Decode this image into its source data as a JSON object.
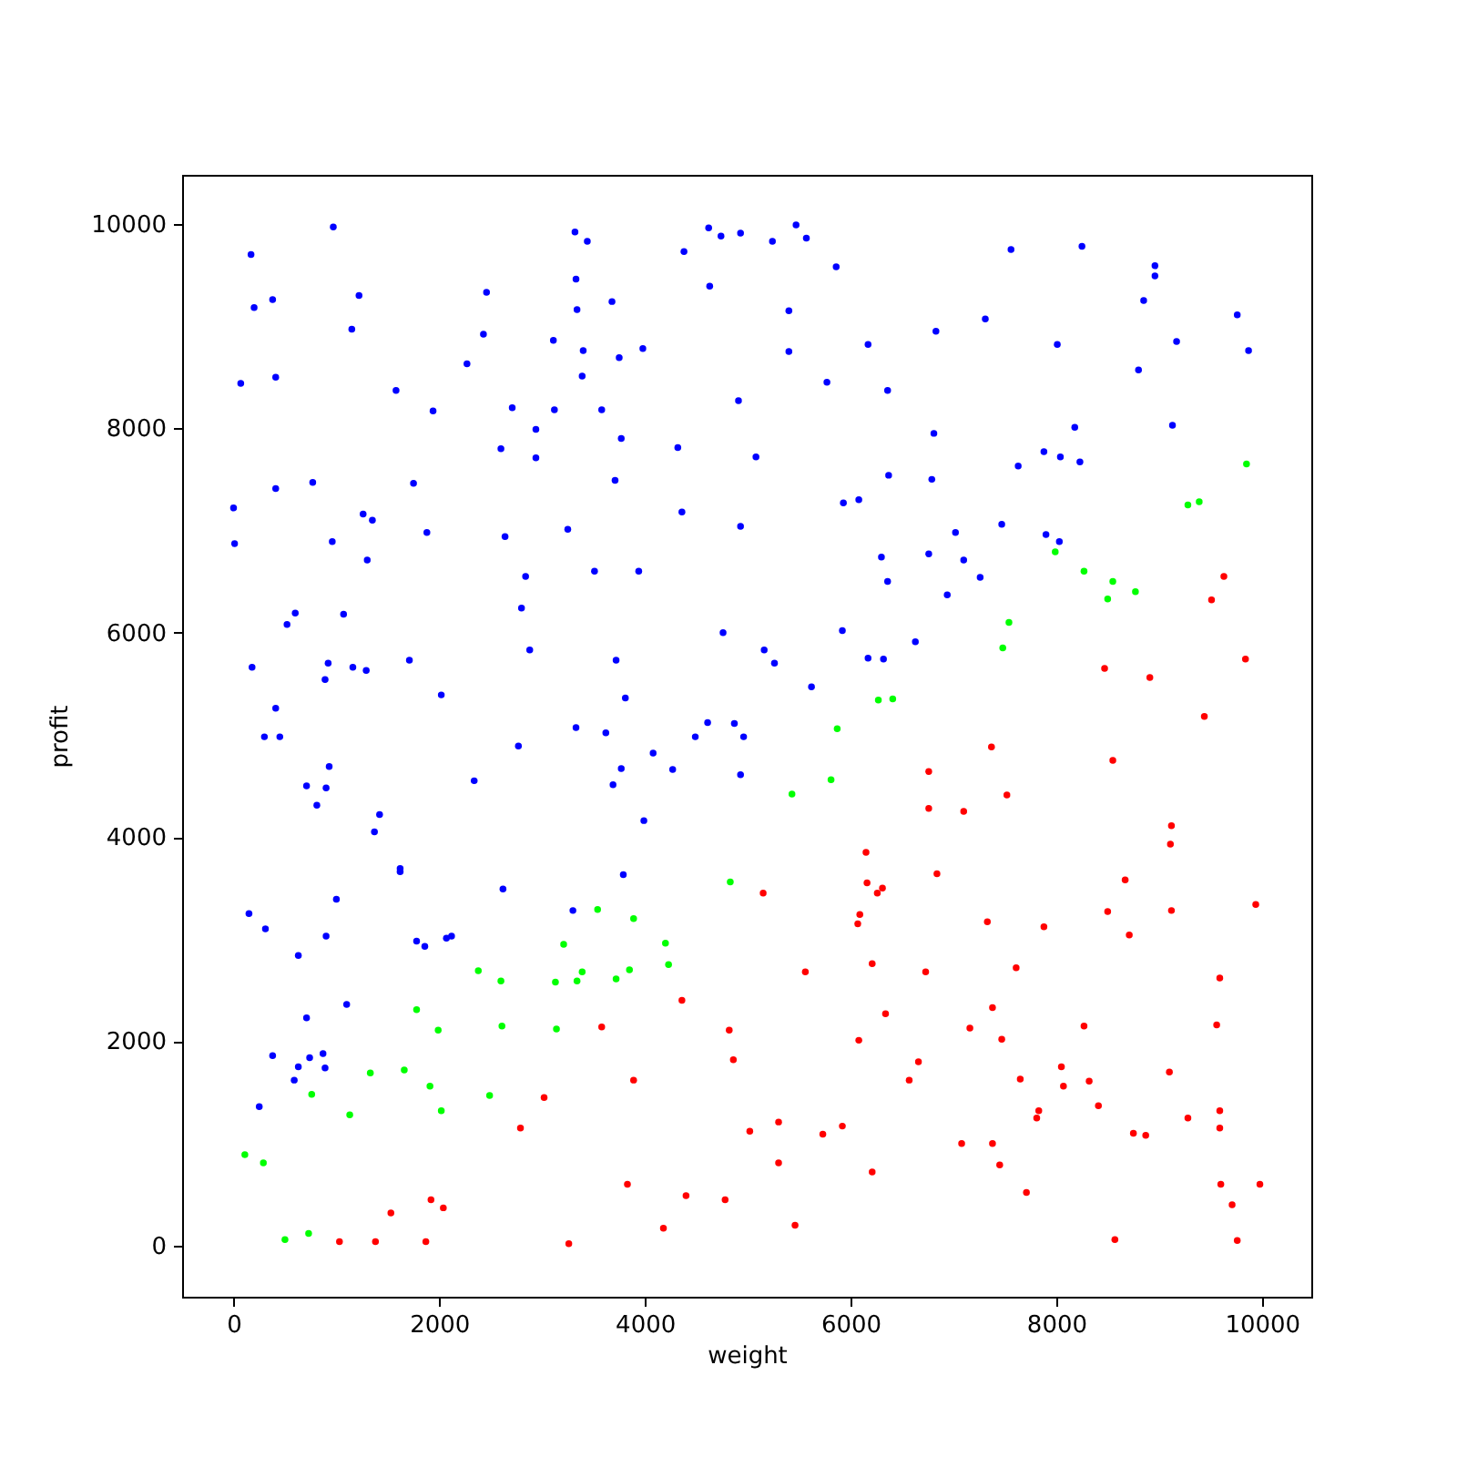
{
  "chart_data": {
    "type": "scatter",
    "xlabel": "weight",
    "ylabel": "profit",
    "xlim": [
      -500,
      10480
    ],
    "ylim": [
      -500,
      10480
    ],
    "xticks": [
      0,
      2000,
      4000,
      6000,
      8000,
      10000
    ],
    "yticks": [
      0,
      2000,
      4000,
      6000,
      8000,
      10000
    ],
    "grid": false,
    "marker": "circle",
    "series": [
      {
        "color": "#0000ff",
        "x": [
          970,
          170,
          380,
          200,
          1220,
          2460,
          1150,
          2430,
          3110,
          2270,
          70,
          410,
          1580,
          1940,
          2710,
          3120,
          2940,
          2600,
          2940,
          410,
          770,
          1750,
          0,
          1260,
          1350,
          1880,
          2640,
          10,
          960,
          1300,
          2840,
          2800,
          600,
          520,
          1070,
          2880,
          180,
          920,
          890,
          1160,
          1290,
          1710,
          2020,
          410,
          300,
          450,
          2770,
          930,
          2340,
          710,
          900,
          810,
          1420,
          1370,
          1620,
          1620,
          2620,
          1000,
          150,
          310,
          900,
          1780,
          1860,
          2070,
          2120,
          630,
          1100,
          710,
          380,
          740,
          870,
          630,
          890,
          590,
          250,
          3320,
          3440,
          4620,
          4740,
          4930,
          4380,
          5240,
          5470,
          5570,
          5860,
          3330,
          4630,
          3680,
          3340,
          5400,
          6830,
          3400,
          3750,
          3980,
          5400,
          6170,
          3390,
          5770,
          6360,
          3580,
          4910,
          3770,
          4320,
          5080,
          6810,
          3710,
          6370,
          6790,
          5930,
          6080,
          4360,
          3250,
          4930,
          3510,
          3940,
          6300,
          6760,
          6360,
          4760,
          5920,
          6630,
          5160,
          5260,
          6170,
          6320,
          3720,
          3810,
          5620,
          3330,
          3620,
          4610,
          4870,
          4490,
          4960,
          4080,
          3770,
          4270,
          4930,
          3690,
          3990,
          3790,
          3300,
          7560,
          8250,
          8960,
          8960,
          8850,
          9760,
          7310,
          8010,
          9170,
          9870,
          8800,
          8180,
          9130,
          7880,
          8040,
          8230,
          7630,
          7470,
          7020,
          7900,
          8030,
          7100,
          7260,
          6940
        ],
        "values": [
          9970,
          9700,
          9260,
          9180,
          9300,
          9330,
          8970,
          8920,
          8860,
          8630,
          8440,
          8500,
          8370,
          8170,
          8200,
          8180,
          7990,
          7800,
          7710,
          7410,
          7470,
          7460,
          7220,
          7160,
          7100,
          6980,
          6940,
          6870,
          6890,
          6710,
          6550,
          6240,
          6190,
          6080,
          6180,
          5830,
          5660,
          5700,
          5540,
          5660,
          5630,
          5730,
          5390,
          5260,
          4980,
          4980,
          4890,
          4690,
          4550,
          4500,
          4480,
          4310,
          4220,
          4050,
          3690,
          3660,
          3490,
          3390,
          3250,
          3100,
          3030,
          2980,
          2930,
          3010,
          3030,
          2840,
          2360,
          2230,
          1860,
          1840,
          1880,
          1750,
          1740,
          1620,
          1360,
          9920,
          9830,
          9960,
          9880,
          9910,
          9730,
          9830,
          9990,
          9860,
          9580,
          9460,
          9390,
          9240,
          9160,
          9150,
          8950,
          8760,
          8690,
          8780,
          8750,
          8820,
          8510,
          8450,
          8370,
          8180,
          8270,
          7900,
          7810,
          7720,
          7950,
          7490,
          7540,
          7500,
          7270,
          7300,
          7180,
          7010,
          7040,
          6600,
          6600,
          6740,
          6770,
          6500,
          6000,
          6020,
          5910,
          5830,
          5700,
          5750,
          5740,
          5730,
          5360,
          5470,
          5070,
          5020,
          5120,
          5110,
          4980,
          4980,
          4820,
          4670,
          4660,
          4610,
          4510,
          4160,
          3630,
          3280,
          9750,
          9780,
          9590,
          9490,
          9250,
          9110,
          9070,
          8820,
          8850,
          8760,
          8570,
          8010,
          8030,
          7770,
          7720,
          7670,
          7630,
          7060,
          6980,
          6960,
          6890,
          6710,
          6540,
          6370
        ]
      },
      {
        "color": "#00ff00",
        "x": [
          6270,
          6410,
          5870,
          5810,
          5430,
          4830,
          3540,
          3890,
          3210,
          4200,
          3390,
          3850,
          4230,
          3340,
          3720,
          3130,
          3140,
          2380,
          2600,
          1780,
          1990,
          2610,
          1330,
          1660,
          1910,
          2020,
          2490,
          760,
          1130,
          110,
          290,
          500,
          730,
          9850,
          9280,
          9390,
          7990,
          8270,
          8550,
          8500,
          8770,
          7540,
          7480
        ],
        "values": [
          5340,
          5350,
          5060,
          4560,
          4420,
          3560,
          3290,
          3200,
          2950,
          2960,
          2680,
          2700,
          2750,
          2590,
          2610,
          2580,
          2120,
          2690,
          2590,
          2310,
          2110,
          2150,
          1690,
          1720,
          1560,
          1320,
          1470,
          1480,
          1280,
          890,
          810,
          60,
          120,
          7650,
          7250,
          7280,
          6790,
          6600,
          6500,
          6330,
          6400,
          6100,
          5850
        ]
      },
      {
        "color": "#ff0000",
        "x": [
          3020,
          2790,
          1920,
          2040,
          1530,
          1030,
          1380,
          1870,
          6760,
          6760,
          6150,
          6840,
          6160,
          6310,
          6260,
          5150,
          6090,
          6070,
          6210,
          5560,
          6730,
          4360,
          6340,
          3580,
          4820,
          6080,
          4860,
          6660,
          6570,
          3890,
          5020,
          5300,
          5730,
          5920,
          5300,
          6210,
          3830,
          4400,
          4780,
          4180,
          5460,
          3260,
          9630,
          9510,
          9840,
          8470,
          8910,
          9440,
          7370,
          8550,
          7520,
          7100,
          9120,
          9110,
          8670,
          8500,
          9120,
          9940,
          7330,
          7880,
          8710,
          7610,
          9590,
          7380,
          7160,
          7470,
          8270,
          9560,
          8050,
          9100,
          7650,
          8070,
          8320,
          8410,
          7830,
          7810,
          9280,
          9590,
          9590,
          8750,
          8870,
          7080,
          7380,
          7450,
          7710,
          9600,
          9980,
          9710,
          8570,
          9760
        ],
        "values": [
          1450,
          1150,
          450,
          370,
          320,
          40,
          40,
          40,
          4640,
          4280,
          3850,
          3640,
          3550,
          3500,
          3450,
          3450,
          3240,
          3150,
          2760,
          2680,
          2680,
          2400,
          2270,
          2140,
          2110,
          2010,
          1820,
          1800,
          1620,
          1620,
          1120,
          1210,
          1090,
          1170,
          810,
          720,
          600,
          490,
          450,
          170,
          200,
          20,
          6550,
          6320,
          5740,
          5650,
          5560,
          5180,
          4880,
          4750,
          4410,
          4250,
          4110,
          3930,
          3580,
          3270,
          3280,
          3340,
          3170,
          3120,
          3040,
          2720,
          2620,
          2330,
          2130,
          2020,
          2150,
          2160,
          1750,
          1700,
          1630,
          1560,
          1610,
          1370,
          1320,
          1250,
          1250,
          1320,
          1150,
          1100,
          1080,
          1000,
          1000,
          790,
          520,
          600,
          600,
          400,
          60,
          50
        ]
      }
    ]
  }
}
